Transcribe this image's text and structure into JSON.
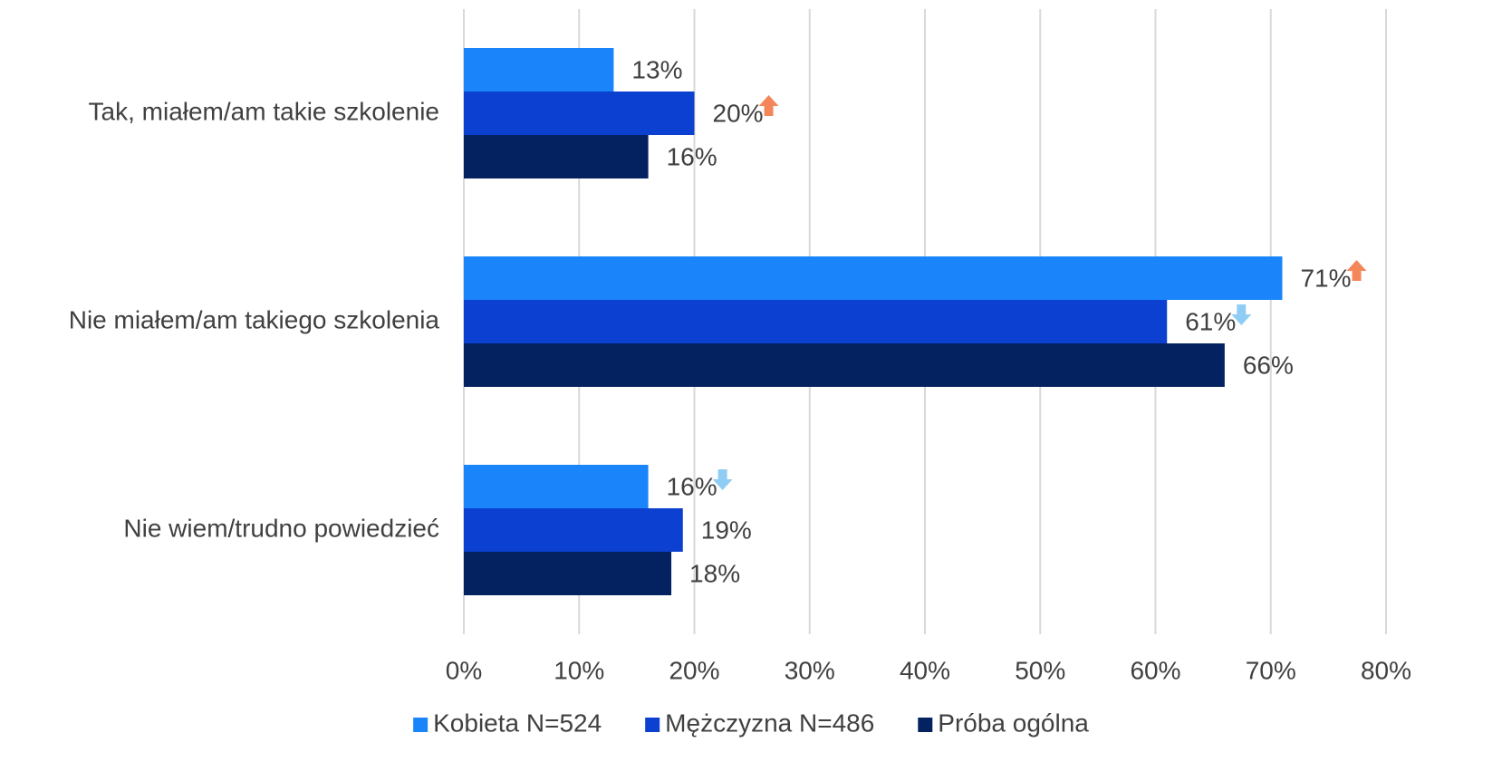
{
  "chart_data": {
    "type": "bar",
    "orientation": "horizontal",
    "categories": [
      "Tak, miałem/am takie szkolenie",
      "Nie miałem/am takiego szkolenia",
      "Nie wiem/trudno powiedzieć"
    ],
    "series": [
      {
        "name": "Kobieta N=524",
        "color": "#1a85fb",
        "values": [
          13,
          71,
          16
        ],
        "value_labels": [
          "13%",
          "71%",
          "16%"
        ],
        "arrows": [
          null,
          "up",
          "down"
        ]
      },
      {
        "name": "Mężczyzna N=486",
        "color": "#0c40d0",
        "values": [
          20,
          61,
          19
        ],
        "value_labels": [
          "20%",
          "61%",
          "19%"
        ],
        "arrows": [
          "up",
          "down",
          null
        ]
      },
      {
        "name": "Próba ogólna",
        "color": "#03225f",
        "values": [
          16,
          66,
          18
        ],
        "value_labels": [
          "16%",
          "66%",
          "18%"
        ],
        "arrows": [
          null,
          null,
          null
        ]
      }
    ],
    "arrow_colors": {
      "up": "#f4875a",
      "down": "#8fcdf5"
    },
    "xlim": [
      0,
      80
    ],
    "xticks": [
      {
        "value": 0,
        "label": "0%"
      },
      {
        "value": 10,
        "label": "10%"
      },
      {
        "value": 20,
        "label": "20%"
      },
      {
        "value": 30,
        "label": "30%"
      },
      {
        "value": 40,
        "label": "40%"
      },
      {
        "value": 50,
        "label": "50%"
      },
      {
        "value": 60,
        "label": "60%"
      },
      {
        "value": 70,
        "label": "70%"
      },
      {
        "value": 80,
        "label": "80%"
      }
    ],
    "grid": true,
    "legend": "bottom"
  }
}
